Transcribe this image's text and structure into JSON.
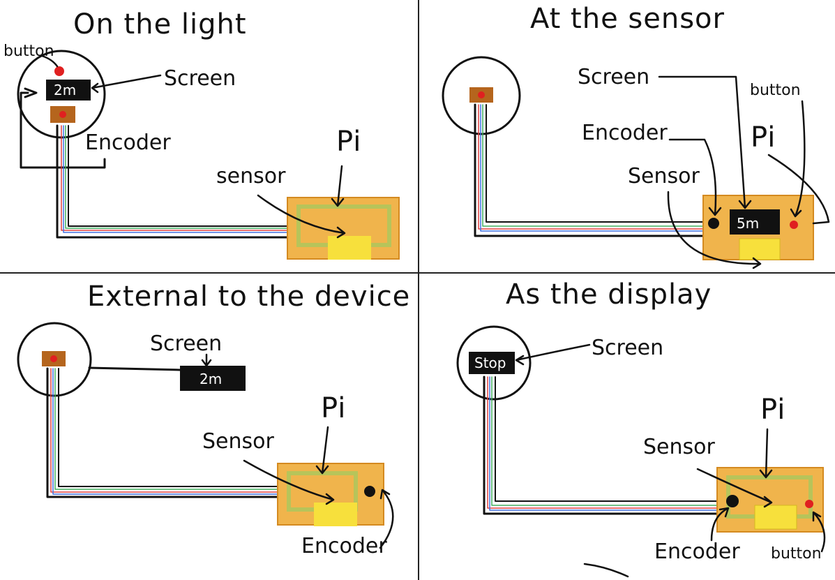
{
  "panels": {
    "p1": {
      "title": "On the light",
      "labels": {
        "button": "button",
        "screen": "Screen",
        "encoder": "Encoder",
        "pi": "Pi",
        "sensor": "sensor"
      },
      "screen_text": "2m"
    },
    "p2": {
      "title": "At the sensor",
      "labels": {
        "screen": "Screen",
        "button": "button",
        "encoder": "Encoder",
        "pi": "Pi",
        "sensor": "Sensor"
      },
      "screen_text": "5m"
    },
    "p3": {
      "title": "External to the device",
      "labels": {
        "screen": "Screen",
        "pi": "Pi",
        "sensor": "Sensor",
        "encoder": "Encoder"
      },
      "screen_text": "2m"
    },
    "p4": {
      "title": "As the display",
      "labels": {
        "screen": "Screen",
        "pi": "Pi",
        "sensor": "Sensor",
        "encoder": "Encoder",
        "button": "button"
      },
      "screen_text": "Stop"
    }
  },
  "colors": {
    "ink": "#111111",
    "pi_board": "#f0b44c",
    "pi_board_inner": "#b7c45a",
    "sensor_block": "#f7e03c",
    "light_module": "#b5651d",
    "led": "#e02020",
    "screen": "#111111",
    "wire_red": "#e04040",
    "wire_blue": "#4070e0",
    "wire_green": "#40b060"
  }
}
